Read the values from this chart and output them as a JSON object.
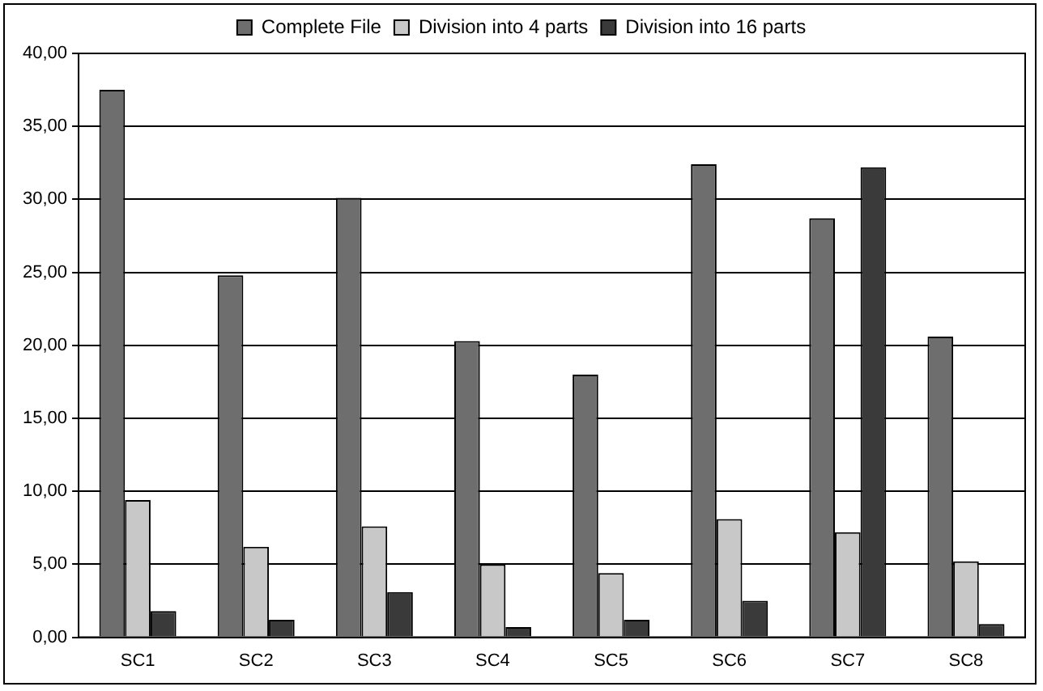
{
  "chart_data": {
    "type": "bar",
    "categories": [
      "SC1",
      "SC2",
      "SC3",
      "SC4",
      "SC5",
      "SC6",
      "SC7",
      "SC8"
    ],
    "series": [
      {
        "name": "Complete File",
        "color": "#6e6e6e",
        "values": [
          37.5,
          24.8,
          30.1,
          20.3,
          18.0,
          32.4,
          28.7,
          20.6
        ]
      },
      {
        "name": "Division into 4 parts",
        "color": "#c8c8c8",
        "values": [
          9.4,
          6.2,
          7.6,
          5.0,
          4.4,
          8.1,
          7.2,
          5.2
        ]
      },
      {
        "name": "Division into 16 parts",
        "color": "#3a3a3a",
        "values": [
          1.8,
          1.2,
          3.1,
          0.7,
          1.2,
          2.5,
          32.2,
          0.9
        ]
      }
    ],
    "ylim": [
      0,
      40
    ],
    "yticks": [
      {
        "value": 0,
        "label": "0,00"
      },
      {
        "value": 5,
        "label": "5,00"
      },
      {
        "value": 10,
        "label": "10,00"
      },
      {
        "value": 15,
        "label": "15,00"
      },
      {
        "value": 20,
        "label": "20,00"
      },
      {
        "value": 25,
        "label": "25,00"
      },
      {
        "value": 30,
        "label": "30,00"
      },
      {
        "value": 35,
        "label": "35,00"
      },
      {
        "value": 40,
        "label": "40,00"
      }
    ],
    "grid": "y",
    "legend": "top"
  }
}
